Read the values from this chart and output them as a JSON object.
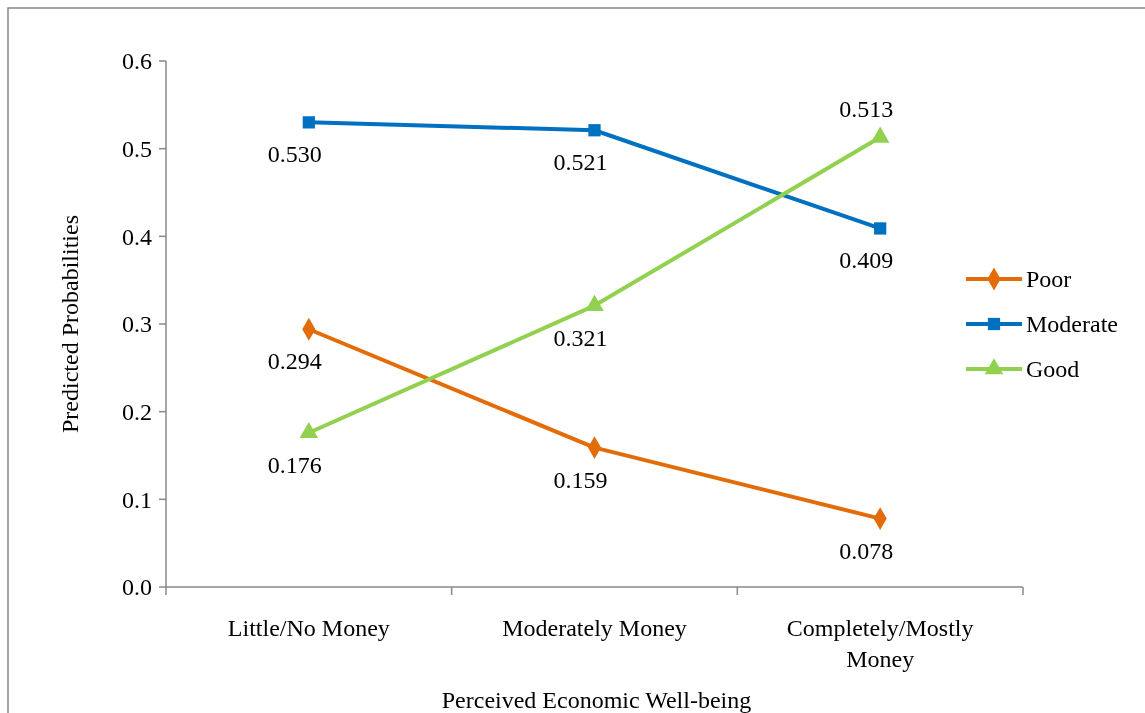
{
  "chart_data": {
    "type": "line",
    "xlabel": "Perceived Economic Well-being",
    "ylabel": "Predicted Probabilities",
    "categories": [
      "Little/No Money",
      "Moderately Money",
      "Completely/Mostly Money"
    ],
    "ylim": [
      0,
      0.6
    ],
    "yticks": [
      {
        "value": 0,
        "label": "0.0"
      },
      0.1,
      0.2,
      0.3,
      0.4,
      0.5,
      0.6
    ],
    "grid": false,
    "legend": "right",
    "series": [
      {
        "name": "Poor",
        "color": "#e36c09",
        "marker": "diamond",
        "values": [
          0.294,
          0.159,
          0.078
        ],
        "value_labels": [
          "0.294",
          "0.159",
          "0.078"
        ]
      },
      {
        "name": "Moderate",
        "color": "#0070c0",
        "marker": "square",
        "values": [
          0.53,
          0.521,
          0.409
        ],
        "value_labels": [
          "0.530",
          "0.521",
          "0.409"
        ]
      },
      {
        "name": "Good",
        "color": "#92d050",
        "marker": "triangle",
        "values": [
          0.176,
          0.321,
          0.513
        ],
        "value_labels": [
          "0.176",
          "0.321",
          "0.513"
        ]
      }
    ]
  }
}
